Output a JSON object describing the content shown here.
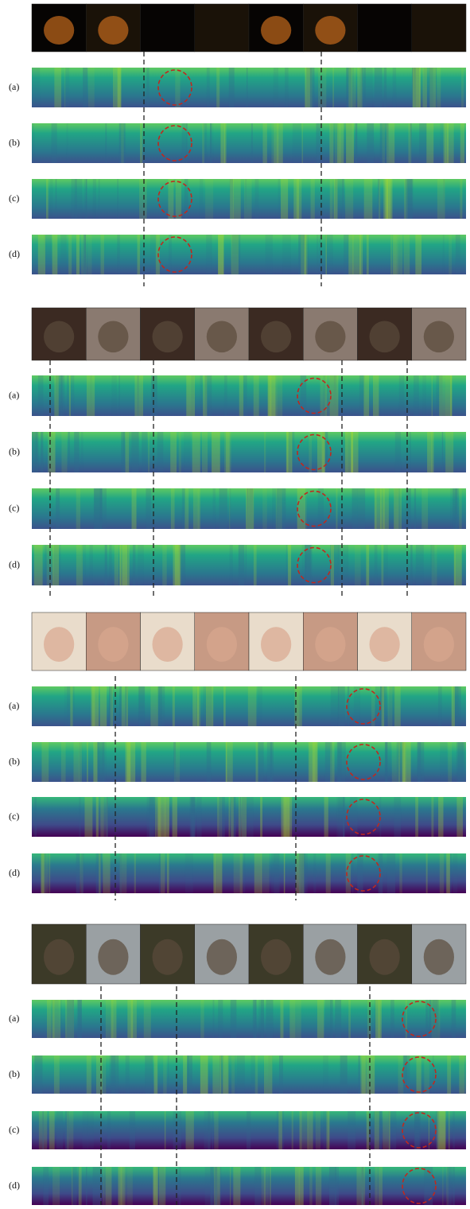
{
  "figure": {
    "groups": [
      {
        "rows": [
          {
            "label": "(a)"
          },
          {
            "label": "(b)"
          },
          {
            "label": "(c)"
          },
          {
            "label": "(d)"
          }
        ]
      },
      {
        "rows": [
          {
            "label": "(a)"
          },
          {
            "label": "(b)"
          },
          {
            "label": "(c)"
          },
          {
            "label": "(d)"
          }
        ]
      },
      {
        "rows": [
          {
            "label": "(a)"
          },
          {
            "label": "(b)"
          },
          {
            "label": "(c)"
          },
          {
            "label": "(d)"
          }
        ]
      },
      {
        "rows": [
          {
            "label": "(a)"
          },
          {
            "label": "(b)"
          },
          {
            "label": "(c)"
          },
          {
            "label": "(d)"
          }
        ]
      }
    ]
  }
}
